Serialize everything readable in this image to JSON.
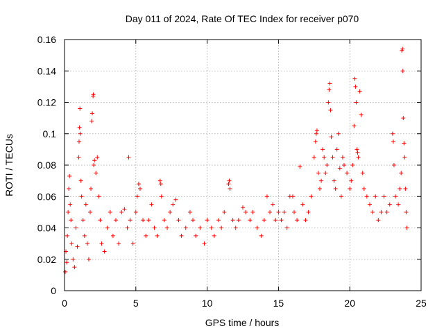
{
  "chart_data": {
    "type": "scatter",
    "title": "Day 011 of 2024, Rate Of TEC Index for receiver p070",
    "xlabel": "GPS time / hours",
    "ylabel": "ROTI / TECUs",
    "xlim": [
      0,
      25
    ],
    "ylim": [
      0,
      0.16
    ],
    "xticks": [
      0,
      5,
      10,
      15,
      20,
      25
    ],
    "xtick_labels": [
      "0",
      "5",
      "10",
      "15",
      "20",
      "25"
    ],
    "yticks": [
      0,
      0.02,
      0.04,
      0.06,
      0.08,
      0.1,
      0.12,
      0.14,
      0.16
    ],
    "ytick_labels": [
      "0",
      "0.02",
      "0.04",
      "0.06",
      "0.08",
      "0.1",
      "0.12",
      "0.14",
      "0.16"
    ],
    "grid": true,
    "marker": "+",
    "marker_color": "#ff0000",
    "series": [
      {
        "points": [
          [
            0.05,
            0.012
          ],
          [
            0.1,
            0.025
          ],
          [
            0.15,
            0.018
          ],
          [
            0.2,
            0.035
          ],
          [
            0.25,
            0.05
          ],
          [
            0.3,
            0.065
          ],
          [
            0.35,
            0.073
          ],
          [
            0.4,
            0.055
          ],
          [
            0.45,
            0.045
          ],
          [
            0.5,
            0.03
          ],
          [
            0.6,
            0.02
          ],
          [
            0.7,
            0.015
          ],
          [
            0.8,
            0.04
          ],
          [
            0.9,
            0.028
          ],
          [
            1.0,
            0.085
          ],
          [
            1.02,
            0.095
          ],
          [
            1.05,
            0.104
          ],
          [
            1.08,
            0.116
          ],
          [
            1.1,
            0.1
          ],
          [
            1.15,
            0.07
          ],
          [
            1.2,
            0.06
          ],
          [
            1.3,
            0.045
          ],
          [
            1.4,
            0.035
          ],
          [
            1.5,
            0.055
          ],
          [
            1.6,
            0.03
          ],
          [
            1.7,
            0.02
          ],
          [
            1.8,
            0.05
          ],
          [
            1.85,
            0.065
          ],
          [
            1.9,
            0.108
          ],
          [
            1.95,
            0.113
          ],
          [
            2.0,
            0.124
          ],
          [
            2.02,
            0.125
          ],
          [
            2.05,
            0.08
          ],
          [
            2.1,
            0.083
          ],
          [
            2.2,
            0.075
          ],
          [
            2.3,
            0.085
          ],
          [
            2.4,
            0.06
          ],
          [
            2.5,
            0.045
          ],
          [
            2.6,
            0.03
          ],
          [
            2.8,
            0.025
          ],
          [
            3.0,
            0.04
          ],
          [
            3.2,
            0.05
          ],
          [
            3.4,
            0.035
          ],
          [
            3.6,
            0.045
          ],
          [
            3.8,
            0.03
          ],
          [
            4.0,
            0.05
          ],
          [
            4.2,
            0.052
          ],
          [
            4.4,
            0.04
          ],
          [
            4.5,
            0.085
          ],
          [
            4.6,
            0.045
          ],
          [
            4.8,
            0.03
          ],
          [
            5.0,
            0.05
          ],
          [
            5.1,
            0.06
          ],
          [
            5.2,
            0.068
          ],
          [
            5.3,
            0.065
          ],
          [
            5.5,
            0.045
          ],
          [
            5.7,
            0.035
          ],
          [
            5.9,
            0.045
          ],
          [
            6.1,
            0.055
          ],
          [
            6.3,
            0.04
          ],
          [
            6.5,
            0.035
          ],
          [
            6.7,
            0.07
          ],
          [
            6.75,
            0.068
          ],
          [
            6.8,
            0.06
          ],
          [
            7.0,
            0.045
          ],
          [
            7.2,
            0.04
          ],
          [
            7.4,
            0.05
          ],
          [
            7.6,
            0.055
          ],
          [
            7.8,
            0.058
          ],
          [
            8.0,
            0.045
          ],
          [
            8.2,
            0.035
          ],
          [
            8.5,
            0.04
          ],
          [
            8.8,
            0.05
          ],
          [
            9.0,
            0.045
          ],
          [
            9.2,
            0.035
          ],
          [
            9.5,
            0.04
          ],
          [
            9.8,
            0.03
          ],
          [
            10.0,
            0.045
          ],
          [
            10.3,
            0.04
          ],
          [
            10.5,
            0.035
          ],
          [
            10.8,
            0.045
          ],
          [
            11.0,
            0.04
          ],
          [
            11.2,
            0.05
          ],
          [
            11.5,
            0.068
          ],
          [
            11.55,
            0.07
          ],
          [
            11.6,
            0.065
          ],
          [
            11.8,
            0.045
          ],
          [
            12.0,
            0.04
          ],
          [
            12.2,
            0.045
          ],
          [
            12.5,
            0.053
          ],
          [
            12.7,
            0.05
          ],
          [
            13.0,
            0.045
          ],
          [
            13.2,
            0.05
          ],
          [
            13.5,
            0.04
          ],
          [
            13.8,
            0.035
          ],
          [
            14.0,
            0.045
          ],
          [
            14.2,
            0.06
          ],
          [
            14.4,
            0.05
          ],
          [
            14.6,
            0.055
          ],
          [
            14.8,
            0.045
          ],
          [
            15.0,
            0.05
          ],
          [
            15.2,
            0.045
          ],
          [
            15.4,
            0.05
          ],
          [
            15.6,
            0.04
          ],
          [
            15.8,
            0.06
          ],
          [
            16.0,
            0.06
          ],
          [
            16.1,
            0.05
          ],
          [
            16.3,
            0.045
          ],
          [
            16.5,
            0.079
          ],
          [
            16.7,
            0.055
          ],
          [
            16.9,
            0.045
          ],
          [
            17.1,
            0.05
          ],
          [
            17.3,
            0.06
          ],
          [
            17.5,
            0.085
          ],
          [
            17.6,
            0.095
          ],
          [
            17.65,
            0.1
          ],
          [
            17.7,
            0.102
          ],
          [
            17.8,
            0.075
          ],
          [
            17.9,
            0.065
          ],
          [
            18.0,
            0.07
          ],
          [
            18.1,
            0.09
          ],
          [
            18.2,
            0.085
          ],
          [
            18.3,
            0.075
          ],
          [
            18.4,
            0.08
          ],
          [
            18.5,
            0.12
          ],
          [
            18.55,
            0.128
          ],
          [
            18.6,
            0.132
          ],
          [
            18.65,
            0.115
          ],
          [
            18.7,
            0.098
          ],
          [
            18.8,
            0.085
          ],
          [
            18.9,
            0.07
          ],
          [
            19.0,
            0.065
          ],
          [
            19.1,
            0.09
          ],
          [
            19.2,
            0.1
          ],
          [
            19.3,
            0.078
          ],
          [
            19.4,
            0.06
          ],
          [
            19.5,
            0.085
          ],
          [
            19.6,
            0.08
          ],
          [
            19.8,
            0.075
          ],
          [
            20.0,
            0.065
          ],
          [
            20.1,
            0.07
          ],
          [
            20.2,
            0.08
          ],
          [
            20.3,
            0.105
          ],
          [
            20.35,
            0.135
          ],
          [
            20.4,
            0.13
          ],
          [
            20.45,
            0.12
          ],
          [
            20.5,
            0.09
          ],
          [
            20.55,
            0.088
          ],
          [
            20.6,
            0.085
          ],
          [
            20.7,
            0.127
          ],
          [
            20.8,
            0.112
          ],
          [
            20.9,
            0.075
          ],
          [
            21.0,
            0.065
          ],
          [
            21.2,
            0.06
          ],
          [
            21.4,
            0.055
          ],
          [
            21.6,
            0.05
          ],
          [
            21.8,
            0.06
          ],
          [
            22.0,
            0.045
          ],
          [
            22.2,
            0.05
          ],
          [
            22.4,
            0.06
          ],
          [
            22.6,
            0.05
          ],
          [
            22.8,
            0.055
          ],
          [
            23.0,
            0.1
          ],
          [
            23.05,
            0.095
          ],
          [
            23.1,
            0.08
          ],
          [
            23.2,
            0.06
          ],
          [
            23.4,
            0.055
          ],
          [
            23.5,
            0.065
          ],
          [
            23.6,
            0.075
          ],
          [
            23.65,
            0.153
          ],
          [
            23.7,
            0.154
          ],
          [
            23.72,
            0.14
          ],
          [
            23.75,
            0.11
          ],
          [
            23.8,
            0.094
          ],
          [
            23.85,
            0.085
          ],
          [
            23.9,
            0.065
          ],
          [
            23.95,
            0.05
          ],
          [
            24.0,
            0.04
          ]
        ]
      }
    ]
  }
}
